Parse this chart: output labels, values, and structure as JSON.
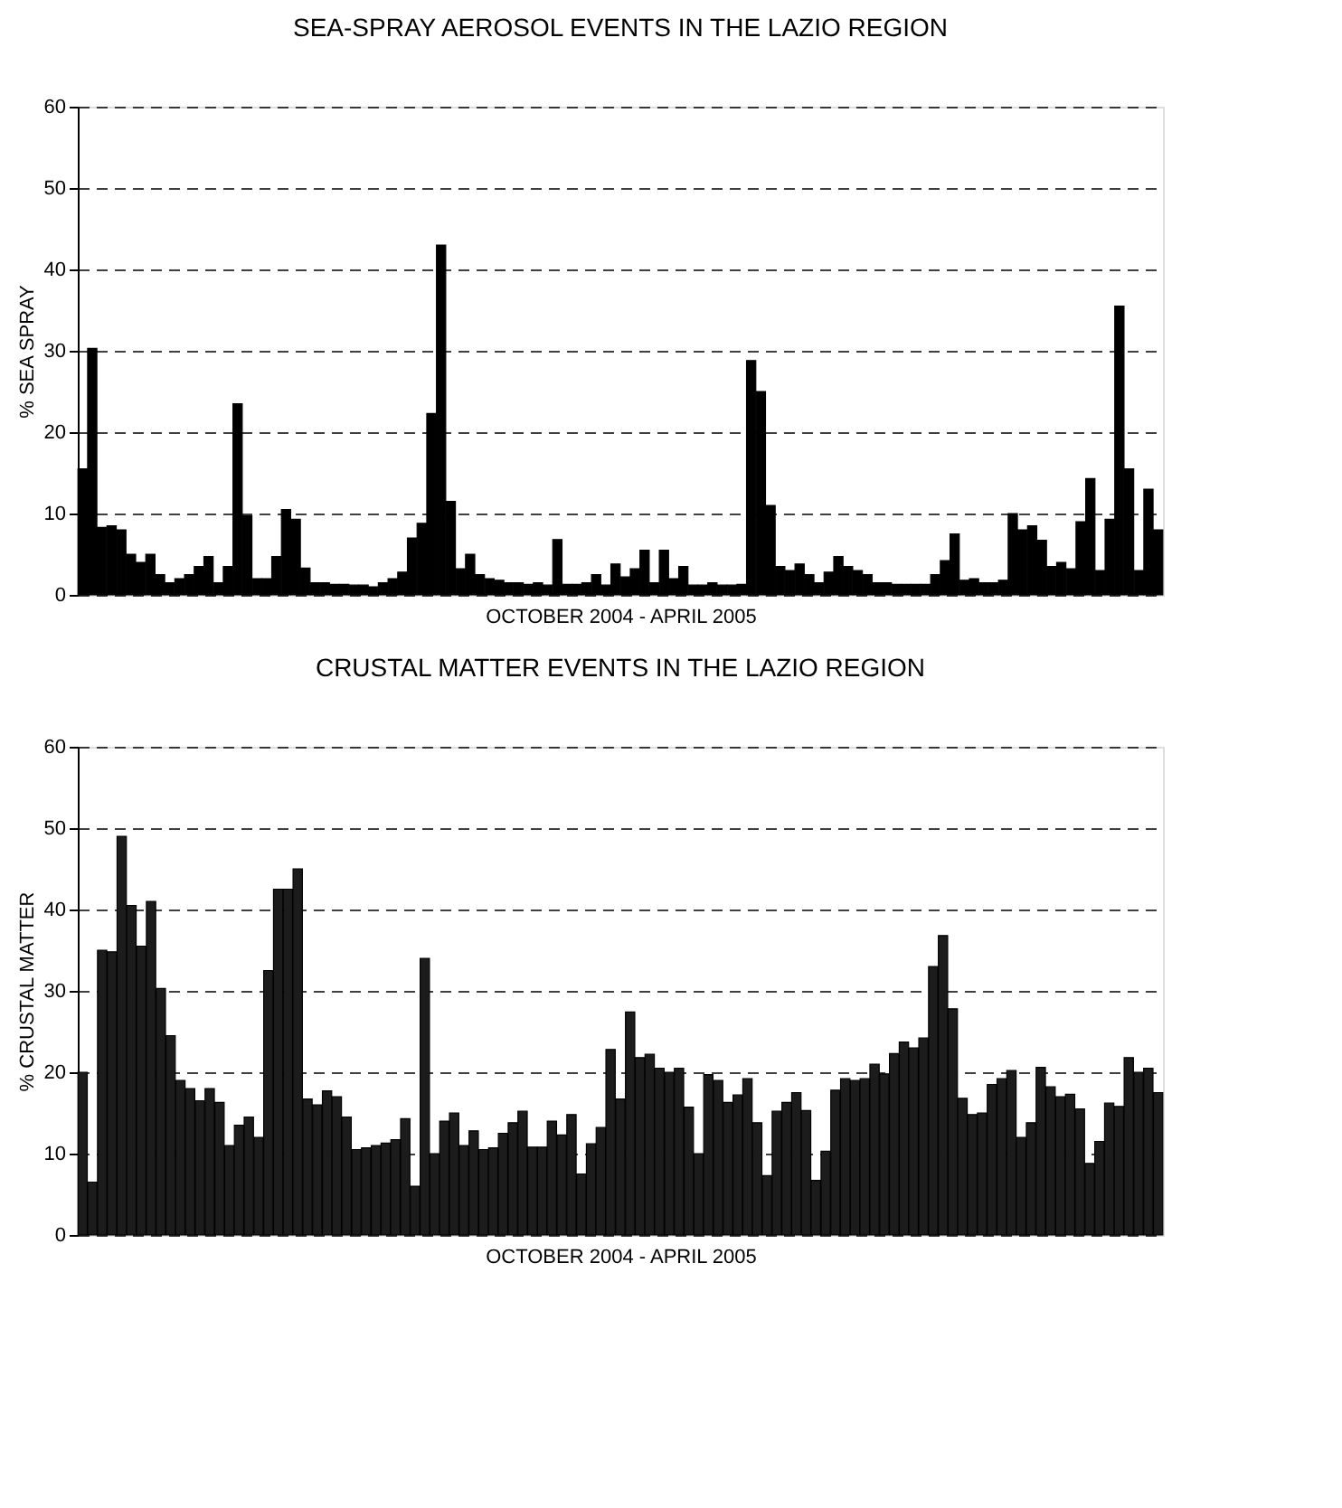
{
  "chart_data": [
    {
      "type": "bar",
      "title": "SEA-SPRAY AEROSOL EVENTS IN THE  LAZIO REGION",
      "xlabel": "OCTOBER 2004  - APRIL 2005",
      "ylabel": "% SEA SPRAY",
      "categories": [
        null,
        null,
        null,
        null,
        null,
        null,
        null,
        null,
        null,
        null,
        null,
        null,
        null,
        null,
        null,
        null,
        null,
        null,
        null,
        null,
        null,
        null,
        null,
        null,
        null,
        null,
        null,
        null,
        null,
        null,
        null,
        null,
        null,
        null,
        null,
        null,
        null,
        null,
        null,
        null,
        null,
        null,
        null,
        null,
        null,
        null,
        null,
        null,
        null,
        null,
        null,
        null,
        null,
        null,
        null,
        null,
        null,
        null,
        null,
        null,
        null,
        null,
        null,
        null,
        null,
        null,
        null,
        null,
        null,
        null,
        null,
        null,
        null,
        null,
        null,
        null,
        null,
        null,
        null,
        null,
        null,
        null,
        null,
        null,
        null,
        null,
        null,
        null,
        null,
        null,
        null,
        null,
        null,
        null,
        null,
        null,
        null,
        null,
        null,
        null,
        null,
        null,
        null,
        null,
        null,
        null,
        null,
        null,
        null,
        null,
        null,
        null
      ],
      "values": [
        15.5,
        30.3,
        8.3,
        8.5,
        8,
        5,
        4,
        5,
        2.5,
        1.5,
        2,
        2.5,
        3.5,
        4.7,
        1.5,
        3.5,
        23.5,
        9.7,
        2,
        2,
        4.7,
        10.5,
        9.3,
        3.3,
        1.5,
        1.5,
        1.3,
        1.3,
        1.2,
        1.2,
        1,
        1.5,
        2,
        2.8,
        7,
        8.8,
        22.3,
        43,
        11.5,
        3.2,
        5,
        2.5,
        2,
        1.8,
        1.5,
        1.5,
        1.3,
        1.5,
        1.2,
        6.8,
        1.3,
        1.3,
        1.5,
        2.5,
        1.2,
        3.8,
        2.2,
        3.2,
        5.5,
        1.5,
        5.5,
        2,
        3.5,
        1.2,
        1.2,
        1.5,
        1.2,
        1.2,
        1.3,
        28.8,
        25,
        11,
        3.5,
        3,
        3.8,
        2.5,
        1.5,
        2.8,
        4.7,
        3.5,
        3,
        2.5,
        1.5,
        1.5,
        1.3,
        1.3,
        1.3,
        1.3,
        2.5,
        4.2,
        7.5,
        1.8,
        2,
        1.5,
        1.5,
        1.8,
        10,
        8,
        8.5,
        6.7,
        3.5,
        4,
        3.2,
        9,
        14.3,
        3,
        9.3,
        35.5,
        15.5,
        3,
        13,
        8
      ],
      "color": "#000000",
      "ylim": [
        0,
        60
      ],
      "yticks": [
        0,
        10,
        20,
        30,
        40,
        50,
        60
      ],
      "grid": "y",
      "tick_labels": "y"
    },
    {
      "type": "bar",
      "title": "CRUSTAL MATTER EVENTS IN THE  LAZIO REGION",
      "xlabel": "OCTOBER 2004  - APRIL 2005",
      "ylabel": "% CRUSTAL MATTER",
      "categories": [
        null,
        null,
        null,
        null,
        null,
        null,
        null,
        null,
        null,
        null,
        null,
        null,
        null,
        null,
        null,
        null,
        null,
        null,
        null,
        null,
        null,
        null,
        null,
        null,
        null,
        null,
        null,
        null,
        null,
        null,
        null,
        null,
        null,
        null,
        null,
        null,
        null,
        null,
        null,
        null,
        null,
        null,
        null,
        null,
        null,
        null,
        null,
        null,
        null,
        null,
        null,
        null,
        null,
        null,
        null,
        null,
        null,
        null,
        null,
        null,
        null,
        null,
        null,
        null,
        null,
        null,
        null,
        null,
        null,
        null,
        null,
        null,
        null,
        null,
        null,
        null,
        null,
        null,
        null,
        null,
        null,
        null,
        null,
        null,
        null,
        null,
        null,
        null,
        null,
        null,
        null,
        null,
        null,
        null,
        null,
        null,
        null,
        null,
        null,
        null,
        null,
        null,
        null,
        null,
        null,
        null,
        null,
        null,
        null,
        null,
        null
      ],
      "values": [
        20,
        6.5,
        35,
        34.8,
        49,
        40.5,
        35.5,
        41,
        30.3,
        24.5,
        19,
        18,
        16.5,
        18,
        16.3,
        11,
        13.5,
        14.5,
        12,
        32.5,
        42.5,
        42.5,
        45,
        16.7,
        16,
        17.7,
        17,
        14.5,
        10.5,
        10.7,
        11,
        11.3,
        11.7,
        14.3,
        6,
        34,
        10,
        14,
        15,
        11,
        12.8,
        10.5,
        10.7,
        12.5,
        13.8,
        15.2,
        10.8,
        10.8,
        14,
        12.3,
        14.8,
        7.5,
        11.2,
        13.2,
        22.8,
        16.7,
        27.4,
        21.8,
        22.2,
        20.5,
        20,
        20.5,
        15.7,
        10,
        19.7,
        19,
        16.3,
        17.2,
        19.2,
        13.8,
        7.3,
        15.2,
        16.3,
        17.5,
        15.3,
        6.7,
        10.3,
        17.8,
        19.2,
        19,
        19.2,
        21,
        19.8,
        22.3,
        23.7,
        23,
        24.2,
        33,
        36.8,
        27.8,
        16.8,
        14.8,
        15,
        18.5,
        19.2,
        20.2,
        12,
        13.8,
        20.6,
        18.2,
        17,
        17.3,
        15.5,
        8.8,
        11.5,
        16.2,
        15.8,
        21.8,
        20,
        20.5,
        17.5
      ],
      "color": "#1c1c1c",
      "ylim": [
        0,
        60
      ],
      "yticks": [
        0,
        10,
        20,
        30,
        40,
        50,
        60
      ],
      "grid": "y",
      "tick_labels": "y"
    }
  ]
}
